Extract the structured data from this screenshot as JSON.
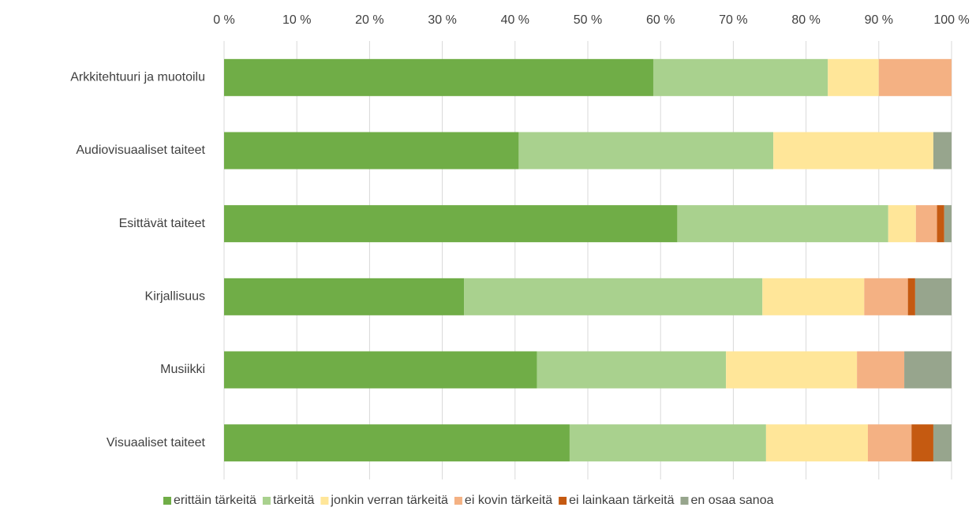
{
  "chart_data": {
    "type": "stacked_barh",
    "categories": [
      "Arkkitehtuuri ja muotoilu",
      "Audiovisuaaliset taiteet",
      "Esittävät taiteet",
      "Kirjallisuus",
      "Musiikki",
      "Visuaaliset taiteet"
    ],
    "series": [
      {
        "name": "erittäin tärkeitä",
        "color": "#70ad47",
        "values": [
          59,
          40.5,
          62.3,
          33,
          43,
          47.5
        ]
      },
      {
        "name": "tärkeitä",
        "color": "#a9d18e",
        "values": [
          24,
          35,
          29,
          41,
          26,
          27
        ]
      },
      {
        "name": "jonkin verran tärkeitä",
        "color": "#ffe699",
        "values": [
          7,
          22,
          3.8,
          14,
          18,
          14
        ]
      },
      {
        "name": "ei kovin tärkeitä",
        "color": "#f4b183",
        "values": [
          10,
          0,
          2.9,
          6,
          6.5,
          6
        ]
      },
      {
        "name": "ei lainkaan tärkeitä",
        "color": "#c55a11",
        "values": [
          0,
          0,
          1,
          1,
          0,
          3
        ]
      },
      {
        "name": "en osaa sanoa",
        "color": "#97a58d",
        "values": [
          0,
          2.5,
          1,
          5,
          6.5,
          2.5
        ]
      }
    ],
    "xlim": [
      0,
      100
    ],
    "xticks": [
      {
        "value": 0,
        "label": "0 %"
      },
      {
        "value": 10,
        "label": "10 %"
      },
      {
        "value": 20,
        "label": "20 %"
      },
      {
        "value": 30,
        "label": "30 %"
      },
      {
        "value": 40,
        "label": "40 %"
      },
      {
        "value": 50,
        "label": "50 %"
      },
      {
        "value": 60,
        "label": "60 %"
      },
      {
        "value": 70,
        "label": "70 %"
      },
      {
        "value": 80,
        "label": "80 %"
      },
      {
        "value": 90,
        "label": "90 %"
      },
      {
        "value": 100,
        "label": "100 %"
      }
    ],
    "grid": true,
    "legend": "bottom"
  }
}
